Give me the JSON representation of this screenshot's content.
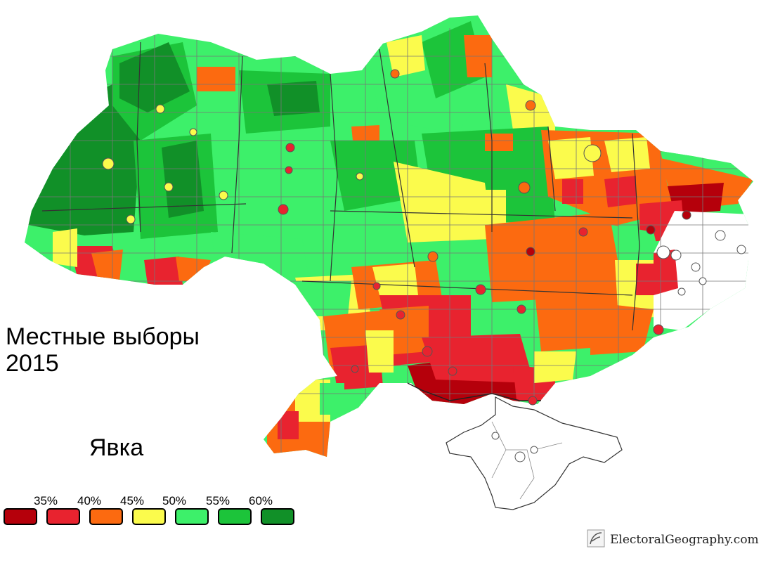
{
  "title_line1": "Местные выборы",
  "title_line2": "2015",
  "subtitle": "Явка",
  "legend": {
    "thresholds": [
      "35%",
      "40%",
      "45%",
      "50%",
      "55%",
      "60%"
    ],
    "colors": [
      "#b5000b",
      "#e8232f",
      "#fc6a10",
      "#fbfb4c",
      "#3df06a",
      "#1cc43a",
      "#119028"
    ]
  },
  "no_data_color": "#ffffff",
  "credit": "ElectoralGeography.com"
}
